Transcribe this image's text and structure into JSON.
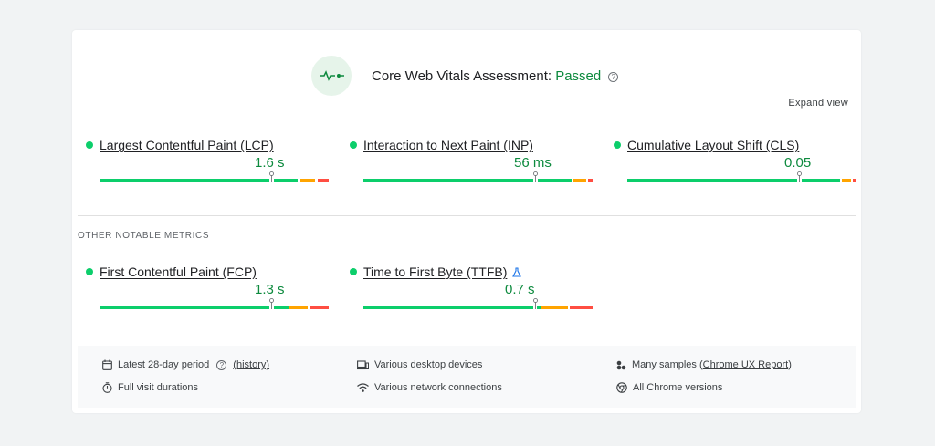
{
  "header": {
    "title": "Core Web Vitals Assessment: ",
    "status": "Passed",
    "help_glyph": "?"
  },
  "expand_label": "Expand view",
  "core_metrics": [
    {
      "label": "Largest Contentful Paint (LCP)",
      "value": "1.6 s"
    },
    {
      "label": "Interaction to Next Paint (INP)",
      "value": "56 ms"
    },
    {
      "label": "Cumulative Layout Shift (CLS)",
      "value": "0.05"
    }
  ],
  "other_title": "OTHER NOTABLE METRICS",
  "other_metrics": [
    {
      "label": "First Contentful Paint (FCP)",
      "value": "1.3 s"
    },
    {
      "label": "Time to First Byte (TTFB)",
      "value": "0.7 s"
    }
  ],
  "footer": {
    "period": "Latest 28-day period",
    "history_link": "(history)",
    "devices": "Various desktop devices",
    "samples_prefix": "Many samples (",
    "samples_link": "Chrome UX Report",
    "samples_suffix": ")",
    "durations": "Full visit durations",
    "connections": "Various network connections",
    "versions": "All Chrome versions"
  },
  "colors": {
    "good": "#0cce6b",
    "needs_improvement": "#ffa400",
    "poor": "#ff4e42",
    "passed": "#0d8a3e"
  }
}
